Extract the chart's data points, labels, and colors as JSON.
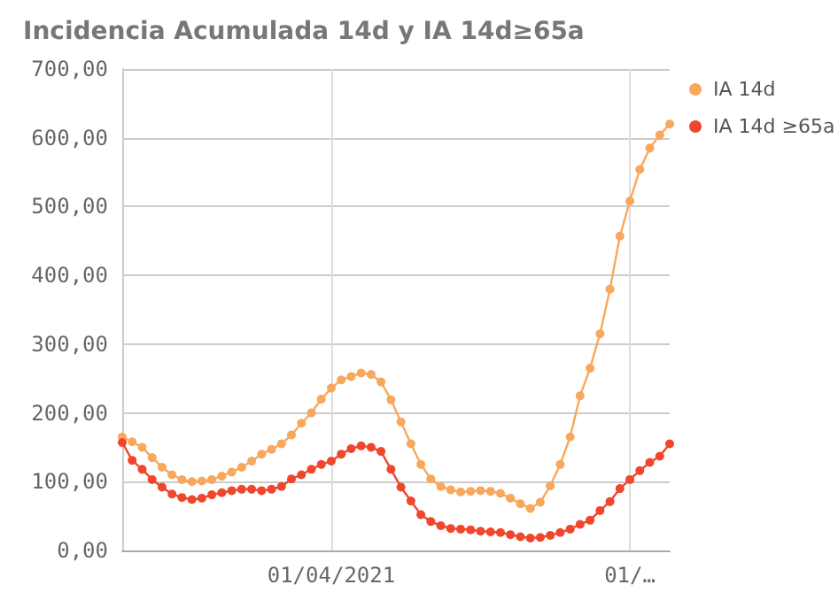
{
  "chart_data": {
    "type": "line",
    "title": "Incidencia Acumulada 14d y IA 14d≥65a",
    "categories": [
      null,
      null,
      null,
      null,
      null,
      null,
      null,
      null,
      null,
      null,
      null,
      null,
      null,
      null,
      null,
      null,
      null,
      null,
      null,
      null,
      null,
      "01/04/2021",
      null,
      null,
      null,
      null,
      null,
      null,
      null,
      null,
      null,
      null,
      null,
      null,
      null,
      null,
      null,
      null,
      null,
      null,
      null,
      null,
      null,
      null,
      null,
      null,
      null,
      null,
      null,
      null,
      null,
      "01/…",
      null,
      null,
      null,
      null
    ],
    "series": [
      {
        "name": "IA 14d",
        "color": "#f8a85c",
        "values": [
          165,
          158,
          150,
          135,
          121,
          110,
          103,
          100,
          101,
          103,
          108,
          114,
          121,
          130,
          140,
          147,
          155,
          168,
          185,
          200,
          220,
          236,
          248,
          253,
          258,
          256,
          245,
          219,
          187,
          155,
          125,
          104,
          93,
          88,
          85,
          86,
          87,
          86,
          83,
          76,
          68,
          61,
          70,
          94,
          125,
          165,
          225,
          265,
          315,
          380,
          457,
          508,
          554,
          585,
          604,
          620
        ]
      },
      {
        "name": "IA 14d ≥65a",
        "color": "#f0472c",
        "values": [
          157,
          131,
          118,
          103,
          92,
          82,
          77,
          74,
          76,
          81,
          84,
          87,
          89,
          89,
          87,
          89,
          93,
          104,
          110,
          118,
          125,
          130,
          140,
          148,
          152,
          150,
          144,
          118,
          92,
          72,
          52,
          42,
          36,
          32,
          31,
          30,
          28,
          27,
          26,
          23,
          20,
          18,
          19,
          22,
          26,
          31,
          38,
          44,
          58,
          71,
          90,
          103,
          116,
          128,
          137,
          155
        ]
      }
    ],
    "ylim": [
      0,
      700
    ],
    "yticks": [
      {
        "value": 0,
        "label": "0,00"
      },
      {
        "value": 100,
        "label": "100,00"
      },
      {
        "value": 200,
        "label": "200,00"
      },
      {
        "value": 300,
        "label": "300,00"
      },
      {
        "value": 400,
        "label": "400,00"
      },
      {
        "value": 500,
        "label": "500,00"
      },
      {
        "value": 600,
        "label": "600,00"
      },
      {
        "value": 700,
        "label": "700,00"
      }
    ],
    "grid": true,
    "legend": "top right",
    "marker": "circle",
    "line_style": "solid"
  }
}
